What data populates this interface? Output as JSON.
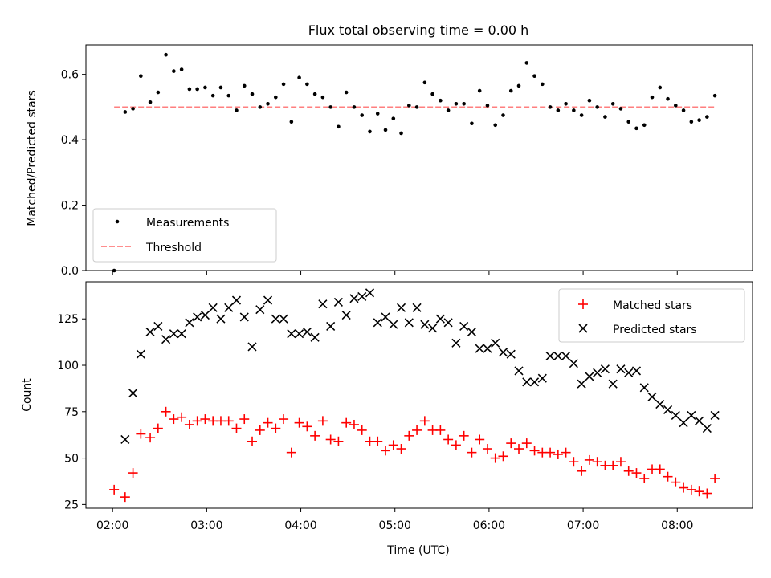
{
  "title": "Flux total observing time = 0.00 h",
  "chart_data": [
    {
      "type": "scatter",
      "ylabel": "Matched/Predicted stars",
      "xlim": [
        "01:43",
        "08:48"
      ],
      "ylim": [
        0,
        0.69
      ],
      "yticks": [
        "0.0",
        "0.2",
        "0.4",
        "0.6"
      ],
      "ytick_values": [
        0,
        0.2,
        0.4,
        0.6
      ],
      "grid": false,
      "legend": {
        "placement": "lower-left",
        "entries": [
          "Measurements",
          "Threshold"
        ]
      },
      "series": [
        {
          "name": "Measurements",
          "color": "#000000",
          "marker": "dot",
          "x": [
            "02:01",
            "02:08",
            "02:13",
            "02:18",
            "02:24",
            "02:29",
            "02:34",
            "02:39",
            "02:44",
            "02:49",
            "02:54",
            "02:59",
            "03:04",
            "03:09",
            "03:14",
            "03:19",
            "03:24",
            "03:29",
            "03:34",
            "03:39",
            "03:44",
            "03:49",
            "03:54",
            "03:59",
            "04:04",
            "04:09",
            "04:14",
            "04:19",
            "04:24",
            "04:29",
            "04:34",
            "04:39",
            "04:44",
            "04:49",
            "04:54",
            "04:59",
            "05:04",
            "05:09",
            "05:14",
            "05:19",
            "05:24",
            "05:29",
            "05:34",
            "05:39",
            "05:44",
            "05:49",
            "05:54",
            "05:59",
            "06:04",
            "06:09",
            "06:14",
            "06:19",
            "06:24",
            "06:29",
            "06:34",
            "06:39",
            "06:44",
            "06:49",
            "06:54",
            "06:59",
            "07:04",
            "07:09",
            "07:14",
            "07:19",
            "07:24",
            "07:29",
            "07:34",
            "07:39",
            "07:44",
            "07:49",
            "07:54",
            "07:59",
            "08:04",
            "08:09",
            "08:14",
            "08:19",
            "08:24"
          ],
          "y": [
            0.0,
            0.485,
            0.495,
            0.595,
            0.515,
            0.545,
            0.66,
            0.61,
            0.615,
            0.555,
            0.555,
            0.56,
            0.535,
            0.56,
            0.535,
            0.49,
            0.565,
            0.54,
            0.5,
            0.51,
            0.53,
            0.57,
            0.455,
            0.59,
            0.57,
            0.54,
            0.53,
            0.5,
            0.44,
            0.545,
            0.5,
            0.475,
            0.425,
            0.48,
            0.43,
            0.465,
            0.42,
            0.505,
            0.5,
            0.575,
            0.54,
            0.52,
            0.49,
            0.51,
            0.51,
            0.45,
            0.55,
            0.505,
            0.445,
            0.475,
            0.55,
            0.565,
            0.635,
            0.595,
            0.57,
            0.5,
            0.49,
            0.51,
            0.49,
            0.475,
            0.52,
            0.5,
            0.47,
            0.51,
            0.495,
            0.455,
            0.435,
            0.445,
            0.53,
            0.56,
            0.525,
            0.505,
            0.49,
            0.455,
            0.46,
            0.47,
            0.535
          ]
        },
        {
          "name": "Threshold",
          "color": "#ff7f7f",
          "style": "dashed",
          "x": [
            "02:01",
            "08:24"
          ],
          "y": [
            0.5,
            0.5
          ]
        }
      ]
    },
    {
      "type": "scatter",
      "xlabel": "Time (UTC)",
      "ylabel": "Count",
      "xlim": [
        "01:43",
        "08:48"
      ],
      "ylim": [
        23,
        145
      ],
      "xticks": [
        "02:00",
        "03:00",
        "04:00",
        "05:00",
        "06:00",
        "07:00",
        "08:00"
      ],
      "yticks": [
        "25",
        "50",
        "75",
        "100",
        "125"
      ],
      "ytick_values": [
        25,
        50,
        75,
        100,
        125
      ],
      "grid": false,
      "legend": {
        "placement": "upper-right",
        "entries": [
          "Matched stars",
          "Predicted stars"
        ]
      },
      "series": [
        {
          "name": "Matched stars",
          "color": "#ff0000",
          "marker": "plus",
          "x": [
            "02:01",
            "02:08",
            "02:13",
            "02:18",
            "02:24",
            "02:29",
            "02:34",
            "02:39",
            "02:44",
            "02:49",
            "02:54",
            "02:59",
            "03:04",
            "03:09",
            "03:14",
            "03:19",
            "03:24",
            "03:29",
            "03:34",
            "03:39",
            "03:44",
            "03:49",
            "03:54",
            "03:59",
            "04:04",
            "04:09",
            "04:14",
            "04:19",
            "04:24",
            "04:29",
            "04:34",
            "04:39",
            "04:44",
            "04:49",
            "04:54",
            "04:59",
            "05:04",
            "05:09",
            "05:14",
            "05:19",
            "05:24",
            "05:29",
            "05:34",
            "05:39",
            "05:44",
            "05:49",
            "05:54",
            "05:59",
            "06:04",
            "06:09",
            "06:14",
            "06:19",
            "06:24",
            "06:29",
            "06:34",
            "06:39",
            "06:44",
            "06:49",
            "06:54",
            "06:59",
            "07:04",
            "07:09",
            "07:14",
            "07:19",
            "07:24",
            "07:29",
            "07:34",
            "07:39",
            "07:44",
            "07:49",
            "07:54",
            "07:59",
            "08:04",
            "08:09",
            "08:14",
            "08:19",
            "08:24"
          ],
          "y": [
            33,
            29,
            42,
            63,
            61,
            66,
            75,
            71,
            72,
            68,
            70,
            71,
            70,
            70,
            70,
            66,
            71,
            59,
            65,
            69,
            66,
            71,
            53,
            69,
            67,
            62,
            70,
            60,
            59,
            69,
            68,
            65,
            59,
            59,
            54,
            57,
            55,
            62,
            65,
            70,
            65,
            65,
            60,
            57,
            62,
            53,
            60,
            55,
            50,
            51,
            58,
            55,
            58,
            54,
            53,
            53,
            52,
            53,
            48,
            43,
            49,
            48,
            46,
            46,
            48,
            43,
            42,
            39,
            44,
            44,
            40,
            37,
            34,
            33,
            32,
            31,
            39
          ]
        },
        {
          "name": "Predicted stars",
          "color": "#000000",
          "marker": "x",
          "x": [
            "02:08",
            "02:13",
            "02:18",
            "02:24",
            "02:29",
            "02:34",
            "02:39",
            "02:44",
            "02:49",
            "02:54",
            "02:59",
            "03:04",
            "03:09",
            "03:14",
            "03:19",
            "03:24",
            "03:29",
            "03:34",
            "03:39",
            "03:44",
            "03:49",
            "03:54",
            "03:59",
            "04:04",
            "04:09",
            "04:14",
            "04:19",
            "04:24",
            "04:29",
            "04:34",
            "04:39",
            "04:44",
            "04:49",
            "04:54",
            "04:59",
            "05:04",
            "05:09",
            "05:14",
            "05:19",
            "05:24",
            "05:29",
            "05:34",
            "05:39",
            "05:44",
            "05:49",
            "05:54",
            "05:59",
            "06:04",
            "06:09",
            "06:14",
            "06:19",
            "06:24",
            "06:29",
            "06:34",
            "06:39",
            "06:44",
            "06:49",
            "06:54",
            "06:59",
            "07:04",
            "07:09",
            "07:14",
            "07:19",
            "07:24",
            "07:29",
            "07:34",
            "07:39",
            "07:44",
            "07:49",
            "07:54",
            "07:59",
            "08:04",
            "08:09",
            "08:14",
            "08:19",
            "08:24"
          ],
          "y": [
            60,
            85,
            106,
            118,
            121,
            114,
            117,
            117,
            123,
            126,
            127,
            131,
            125,
            131,
            135,
            126,
            110,
            130,
            135,
            125,
            125,
            117,
            117,
            118,
            115,
            133,
            121,
            134,
            127,
            136,
            137,
            139,
            123,
            126,
            122,
            131,
            123,
            131,
            122,
            120,
            125,
            123,
            112,
            121,
            118,
            109,
            109,
            112,
            107,
            106,
            97,
            91,
            91,
            93,
            105,
            105,
            105,
            101,
            90,
            94,
            96,
            98,
            90,
            98,
            96,
            97,
            88,
            83,
            79,
            76,
            73,
            69,
            73,
            70,
            66,
            73
          ]
        }
      ]
    }
  ]
}
